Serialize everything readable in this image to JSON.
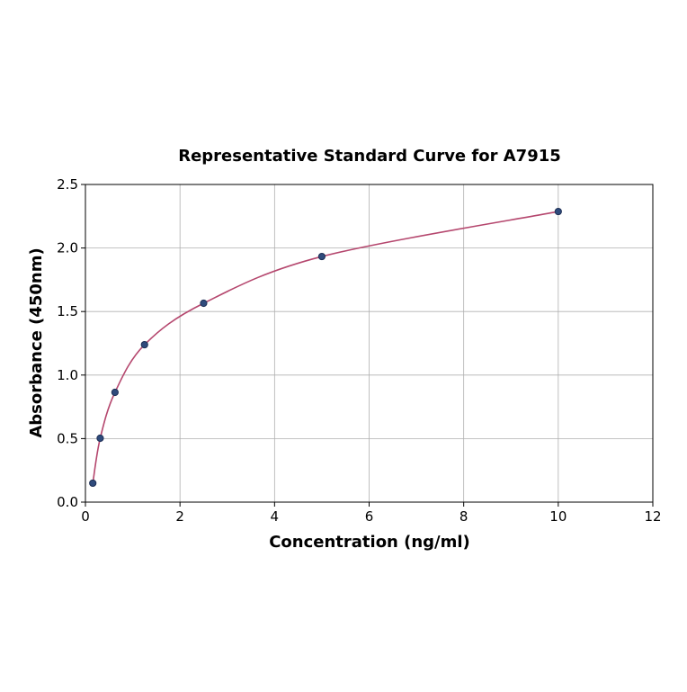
{
  "chart_data": {
    "type": "scatter",
    "title": "Representative Standard Curve for A7915",
    "xlabel": "Concentration (ng/ml)",
    "ylabel": "Absorbance (450nm)",
    "xlim": [
      0,
      12
    ],
    "ylim": [
      0,
      2.5
    ],
    "xticks": [
      "0",
      "2",
      "4",
      "6",
      "8",
      "10",
      "12"
    ],
    "yticks": [
      "0.0",
      "0.5",
      "1.0",
      "1.5",
      "2.0",
      "2.5"
    ],
    "grid": true,
    "series": [
      {
        "x": [
          0.156,
          0.3125,
          0.625,
          1.25,
          2.5,
          5,
          10
        ],
        "y": [
          0.149,
          0.503,
          0.864,
          1.239,
          1.565,
          1.933,
          2.287
        ]
      }
    ],
    "fit_curve": true,
    "colors": {
      "points": "#2f4b7c",
      "point_edge": "#1e2f55",
      "curve": "#b5476e",
      "grid": "#b0b0b0"
    }
  }
}
